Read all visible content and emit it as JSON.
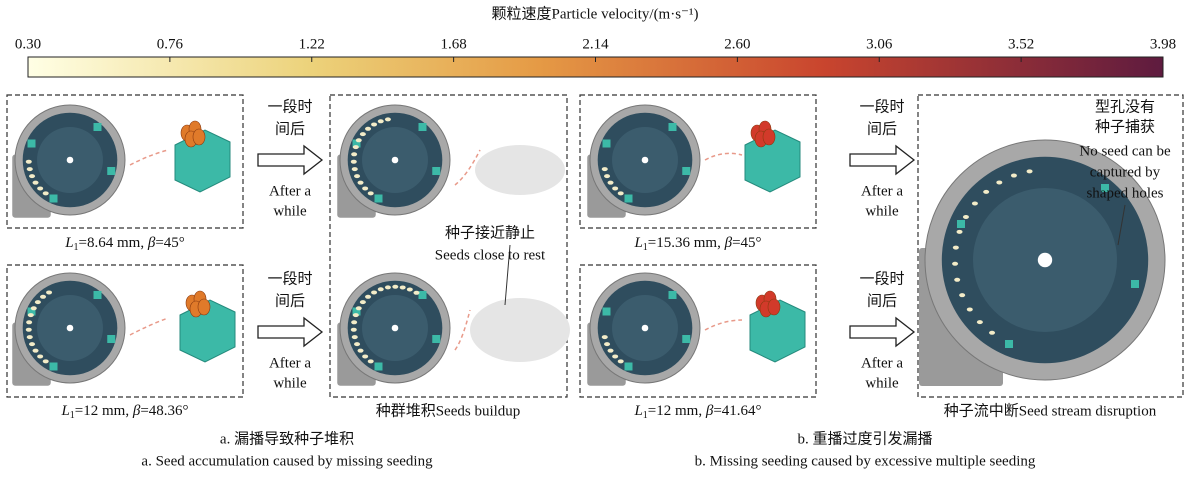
{
  "colorbar": {
    "title": "颗粒速度Particle velocity/(m·s⁻¹)",
    "ticks": [
      "0.30",
      "0.76",
      "1.22",
      "1.68",
      "2.14",
      "2.60",
      "3.06",
      "3.52",
      "3.98"
    ]
  },
  "arrows": [
    {
      "zh": [
        "一段时",
        "间后"
      ],
      "en": [
        "After a",
        "while"
      ]
    },
    {
      "zh": [
        "一段时",
        "间后"
      ],
      "en": [
        "After a",
        "while"
      ]
    },
    {
      "zh": [
        "一段时",
        "间后"
      ],
      "en": [
        "After a",
        "while"
      ]
    },
    {
      "zh": [
        "一段时",
        "间后"
      ],
      "en": [
        "After a",
        "while"
      ]
    }
  ],
  "labels": [
    {
      "symbol": "L",
      "subscript": "1",
      "text": "=8.64 mm, ",
      "symbol2": "β",
      "value": "=45°"
    },
    {
      "symbol": "L",
      "subscript": "1",
      "text": "=12 mm, ",
      "symbol2": "β",
      "value": "=48.36°"
    },
    {
      "symbol": "L",
      "subscript": "1",
      "text": "=15.36 mm, ",
      "symbol2": "β",
      "value": "=45°"
    },
    {
      "symbol": "L",
      "subscript": "1",
      "text": "=12 mm, ",
      "symbol2": "β",
      "value": "=41.64°"
    }
  ],
  "middle_labels": [
    "种群堆积Seeds buildup",
    "种子流中断Seed stream disruption"
  ],
  "annotations": {
    "rest": [
      "种子接近静止",
      "Seeds close to rest"
    ],
    "holes": [
      "型孔没有",
      "种子捕获",
      "No seed can be",
      "captured by",
      "shaped holes"
    ]
  },
  "captions": {
    "a": [
      "a. 漏播导致种子堆积",
      "a. Seed accumulation caused by missing seeding"
    ],
    "b": [
      "b. 重播过度引发漏播",
      "b. Missing seeding caused by excessive multiple seeding"
    ]
  }
}
